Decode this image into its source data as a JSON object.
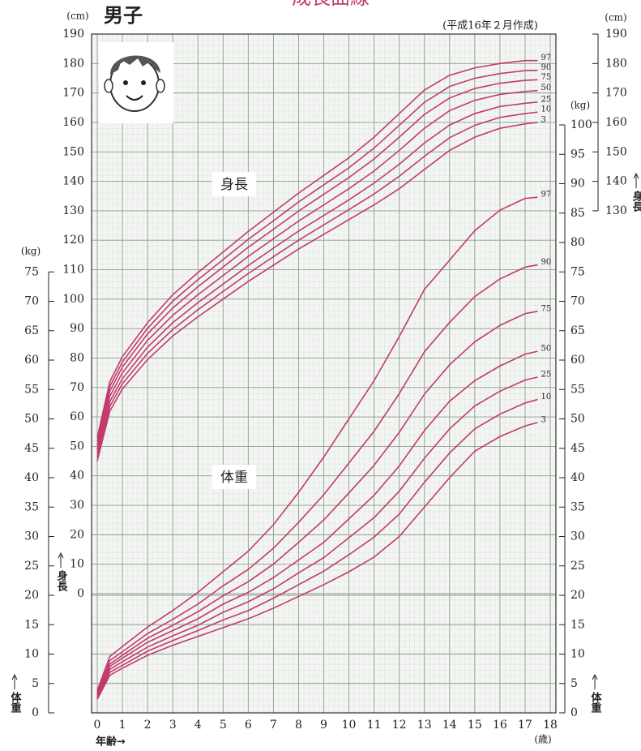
{
  "chart_data": {
    "type": "line",
    "title": "成長曲線",
    "subtitle": "男子",
    "note": "(平成16年２月作成)",
    "height_label": "身長",
    "weight_label": "体重",
    "x_label": "年齢→",
    "x_unit": "(歳)",
    "y_unit": "(cm)",
    "y2_unit": "(kg)",
    "x": [
      0,
      0.5,
      1,
      2,
      3,
      4,
      5,
      6,
      7,
      8,
      9,
      10,
      11,
      12,
      13,
      14,
      15,
      16,
      17,
      17.5
    ],
    "xlim": [
      0,
      18
    ],
    "xticks": [
      0,
      1,
      2,
      3,
      4,
      5,
      6,
      7,
      8,
      9,
      10,
      11,
      12,
      13,
      14,
      15,
      16,
      17,
      18
    ],
    "ylim": [
      0,
      190
    ],
    "yticks": [
      0,
      10,
      20,
      30,
      40,
      50,
      60,
      70,
      80,
      90,
      100,
      110,
      120,
      130,
      140,
      150,
      160,
      170,
      180,
      190
    ],
    "right_height_ticks": [
      130,
      140,
      150,
      160,
      170,
      180,
      190
    ],
    "y2lim": [
      0,
      100
    ],
    "y2ticks": [
      0,
      5,
      10,
      15,
      20,
      25,
      30,
      35,
      40,
      45,
      50,
      55,
      60,
      65,
      70,
      75,
      80,
      85,
      90,
      95,
      100
    ],
    "left_weight_ticks": [
      0,
      5,
      10,
      15,
      20,
      25,
      30,
      35,
      40,
      45,
      50,
      55,
      60,
      65,
      70,
      75
    ],
    "grid": true,
    "series": [
      {
        "name": "3",
        "axis": "y",
        "color": "#c23a6c",
        "values": [
          45,
          62,
          69.5,
          79.5,
          87.5,
          94,
          100,
          106,
          111.5,
          117,
          122,
          127,
          132,
          137.5,
          144,
          150.5,
          155,
          158,
          159.5,
          160
        ]
      },
      {
        "name": "10",
        "axis": "y",
        "color": "#c23a6c",
        "values": [
          46.3,
          63.6,
          71.3,
          81.6,
          89.7,
          96.4,
          102.6,
          108.7,
          114.4,
          120.0,
          125.2,
          130.4,
          135.7,
          141.7,
          148.5,
          154.8,
          159.0,
          161.7,
          163.0,
          163.5
        ]
      },
      {
        "name": "25",
        "axis": "y",
        "color": "#c23a6c",
        "values": [
          47.6,
          65.2,
          73.0,
          83.7,
          92.0,
          98.8,
          105.1,
          111.4,
          117.3,
          123.1,
          128.4,
          133.7,
          139.4,
          145.8,
          153.0,
          159.1,
          163.0,
          165.4,
          166.5,
          166.9
        ]
      },
      {
        "name": "50",
        "axis": "y",
        "color": "#c23a6c",
        "values": [
          49,
          67,
          75,
          86,
          94.5,
          101.5,
          108,
          114.5,
          120.5,
          126.5,
          132,
          137.5,
          143.5,
          150.5,
          158,
          164,
          167.5,
          169.5,
          170.5,
          170.8
        ]
      },
      {
        "name": "75",
        "axis": "y",
        "color": "#c23a6c",
        "values": [
          50.4,
          68.8,
          77.0,
          88.2,
          97.0,
          104.2,
          110.9,
          117.6,
          123.7,
          129.9,
          135.6,
          141.3,
          147.6,
          155.0,
          162.7,
          168.3,
          171.5,
          173.3,
          174.3,
          174.5
        ]
      },
      {
        "name": "90",
        "axis": "y",
        "color": "#c23a6c",
        "values": [
          51.7,
          70.4,
          78.7,
          90.1,
          99.3,
          106.6,
          113.4,
          120.3,
          126.6,
          133.0,
          138.8,
          144.6,
          151.3,
          159.0,
          166.8,
          172.2,
          175.0,
          176.6,
          177.6,
          177.7
        ]
      },
      {
        "name": "97",
        "axis": "y",
        "color": "#c23a6c",
        "values": [
          53,
          72,
          80.5,
          92,
          101.5,
          109,
          116,
          123,
          129.5,
          136,
          142,
          148,
          155,
          163,
          171,
          176,
          178.5,
          180,
          181,
          181
        ]
      },
      {
        "name": "3",
        "axis": "y2",
        "color": "#c23a6c",
        "values": [
          2.3,
          6.4,
          7.6,
          9.8,
          11.5,
          13,
          14.5,
          16,
          17.8,
          19.8,
          21.8,
          24,
          26.5,
          30,
          35,
          40,
          44.5,
          47,
          48.8,
          49.4
        ]
      },
      {
        "name": "10",
        "axis": "y2",
        "color": "#c23a6c",
        "values": [
          2.5,
          6.9,
          8.1,
          10.5,
          12.3,
          14.0,
          15.8,
          17.4,
          19.5,
          21.8,
          24.1,
          26.9,
          29.9,
          33.8,
          39.2,
          44.2,
          48.3,
          50.8,
          52.7,
          53.3
        ]
      },
      {
        "name": "25",
        "axis": "y2",
        "color": "#c23a6c",
        "values": [
          2.7,
          7.4,
          8.7,
          11.2,
          13.1,
          14.9,
          17.1,
          18.9,
          21.1,
          23.8,
          26.4,
          29.8,
          33.2,
          37.7,
          43.3,
          48.3,
          52.2,
          54.7,
          56.6,
          57.1
        ]
      },
      {
        "name": "50",
        "axis": "y2",
        "color": "#c23a6c",
        "values": [
          3,
          7.9,
          9.3,
          12,
          14,
          16,
          18.5,
          20.5,
          23,
          26,
          29,
          33,
          37,
          42,
          48,
          53,
          56.5,
          59,
          61,
          61.5
        ]
      },
      {
        "name": "75",
        "axis": "y2",
        "color": "#c23a6c",
        "values": [
          3.2,
          8.3,
          9.8,
          12.7,
          14.9,
          17.2,
          19.9,
          22.3,
          25.3,
          29.0,
          32.8,
          37.4,
          42.1,
          47.7,
          54.2,
          59.2,
          63.1,
          65.9,
          67.9,
          68.3
        ]
      },
      {
        "name": "90",
        "axis": "y2",
        "color": "#c23a6c",
        "values": [
          3.4,
          8.9,
          10.4,
          13.5,
          15.9,
          18.5,
          21.6,
          24.4,
          28.0,
          32.4,
          37.1,
          42.5,
          47.9,
          54.3,
          61.4,
          66.4,
          70.8,
          73.8,
          75.8,
          76.2
        ]
      },
      {
        "name": "97",
        "axis": "y2",
        "color": "#c23a6c",
        "values": [
          3.8,
          9.6,
          11.3,
          14.6,
          17.4,
          20.5,
          24,
          27.5,
          32,
          37.5,
          43.5,
          50,
          56.5,
          64,
          72,
          77,
          82,
          85.5,
          87.5,
          87.7
        ]
      }
    ]
  }
}
